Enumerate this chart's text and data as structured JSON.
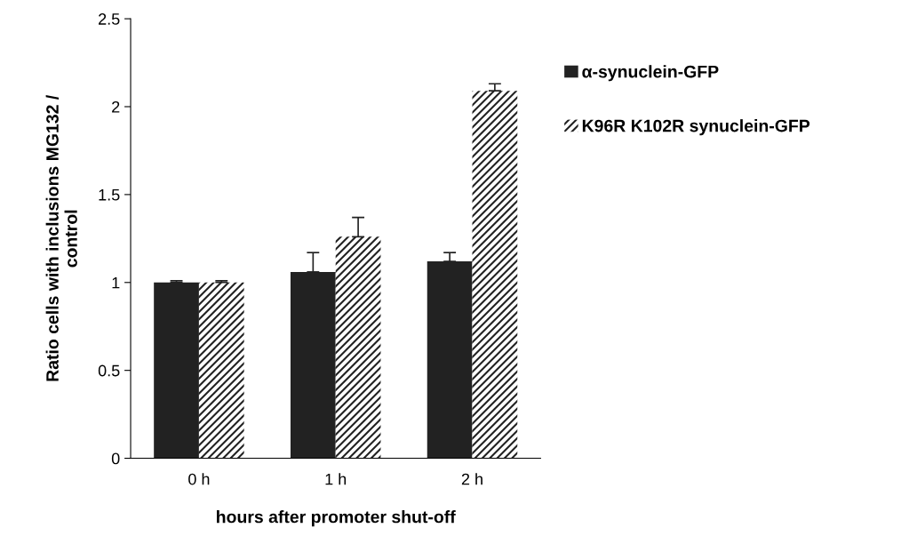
{
  "chart_data": {
    "type": "bar",
    "xlabel": "hours after promoter shut-off",
    "ylabel": "Ratio cells with inclusions MG132 /\ncontrol",
    "categories": [
      "0 h",
      "1 h",
      "2 h"
    ],
    "series": [
      {
        "name": "α-synuclein-GFP",
        "color": "#222222",
        "values": [
          1.0,
          1.06,
          1.12
        ],
        "errors": [
          0.01,
          0.11,
          0.05
        ]
      },
      {
        "name": "K96R K102R synuclein-GFP",
        "color": "#ffffff",
        "values": [
          1.0,
          1.26,
          2.09
        ],
        "errors": [
          0.01,
          0.11,
          0.04
        ]
      }
    ],
    "ylim": [
      0,
      2.5
    ],
    "yticks": [
      0,
      0.5,
      1,
      1.5,
      2,
      2.5
    ],
    "grid": false,
    "legend": "top right"
  }
}
